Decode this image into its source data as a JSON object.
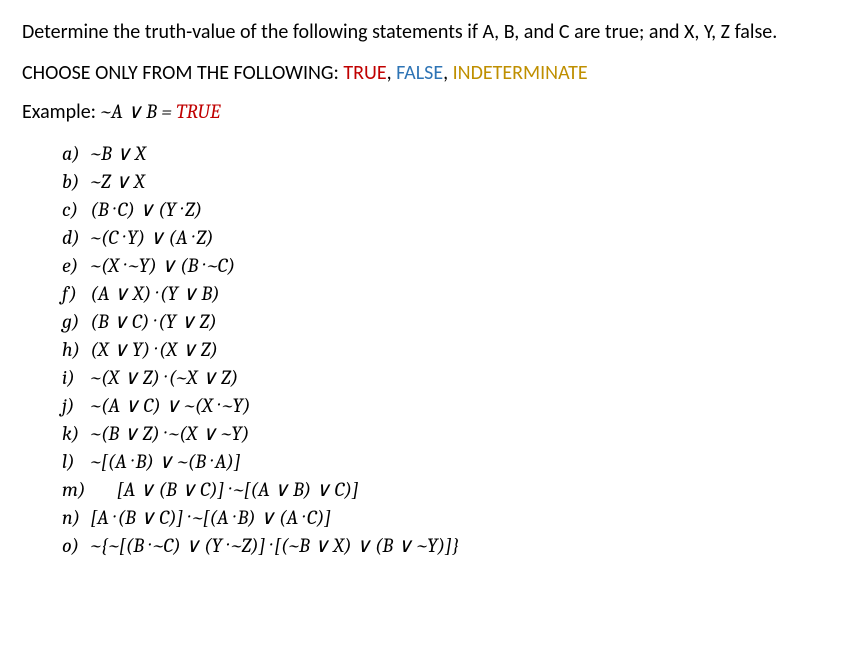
{
  "colors": {
    "true": "#c00000",
    "false": "#2e74b5",
    "indeterminate": "#bf8f00",
    "text": "#000000",
    "background": "#ffffff"
  },
  "typography": {
    "body_font": "Calibri",
    "math_font": "Cambria",
    "base_size_pt": 15,
    "math_style": "italic"
  },
  "intro": "Determine the truth-value of the following statements if A, B, and C are true; and X, Y, Z false.",
  "choose_prefix": "CHOOSE ONLY FROM THE FOLLOWING: ",
  "choose_options": {
    "true": "TRUE",
    "false": "FALSE",
    "indeterminate": "INDETERMINATE"
  },
  "choose_sep": ", ",
  "example_label": "Example: ",
  "example_expr": "~A ∨ B = ",
  "example_answer": "TRUE",
  "items": [
    {
      "label": "a)",
      "expr": "~B ∨ X"
    },
    {
      "label": "b)",
      "expr": "~Z ∨ X"
    },
    {
      "label": "c)",
      "expr": "(B · C) ∨ (Y · Z)"
    },
    {
      "label": "d)",
      "expr": "~(C · Y) ∨ (A · Z)"
    },
    {
      "label": "e)",
      "expr": "~(X · ~Y) ∨ (B · ~C)"
    },
    {
      "label": "f)",
      "expr": "(A ∨ X) · (Y ∨ B)"
    },
    {
      "label": "g)",
      "expr": "(B ∨ C) · (Y ∨ Z)"
    },
    {
      "label": "h)",
      "expr": "(X ∨ Y) · (X ∨ Z)"
    },
    {
      "label": "i)",
      "expr": "~(X ∨ Z) · (~X ∨ Z)"
    },
    {
      "label": "j)",
      "expr": "~(A ∨ C) ∨ ~(X · ~Y)"
    },
    {
      "label": "k)",
      "expr": "~(B ∨ Z) · ~(X ∨ ~Y)"
    },
    {
      "label": "l)",
      "expr": "~[(A · B) ∨ ~(B · A)]"
    },
    {
      "label": "m)",
      "expr": "      [A ∨ (B ∨ C)] · ~[(A ∨ B) ∨ C)]"
    },
    {
      "label": "n)",
      "expr": "[A · (B ∨ C)] · ~[(A · B) ∨ (A · C)]"
    },
    {
      "label": "o)",
      "expr": "~{~[(B · ~C) ∨ (Y · ~Z)] · [(~B ∨ X) ∨ (B ∨ ~Y)]}"
    }
  ]
}
